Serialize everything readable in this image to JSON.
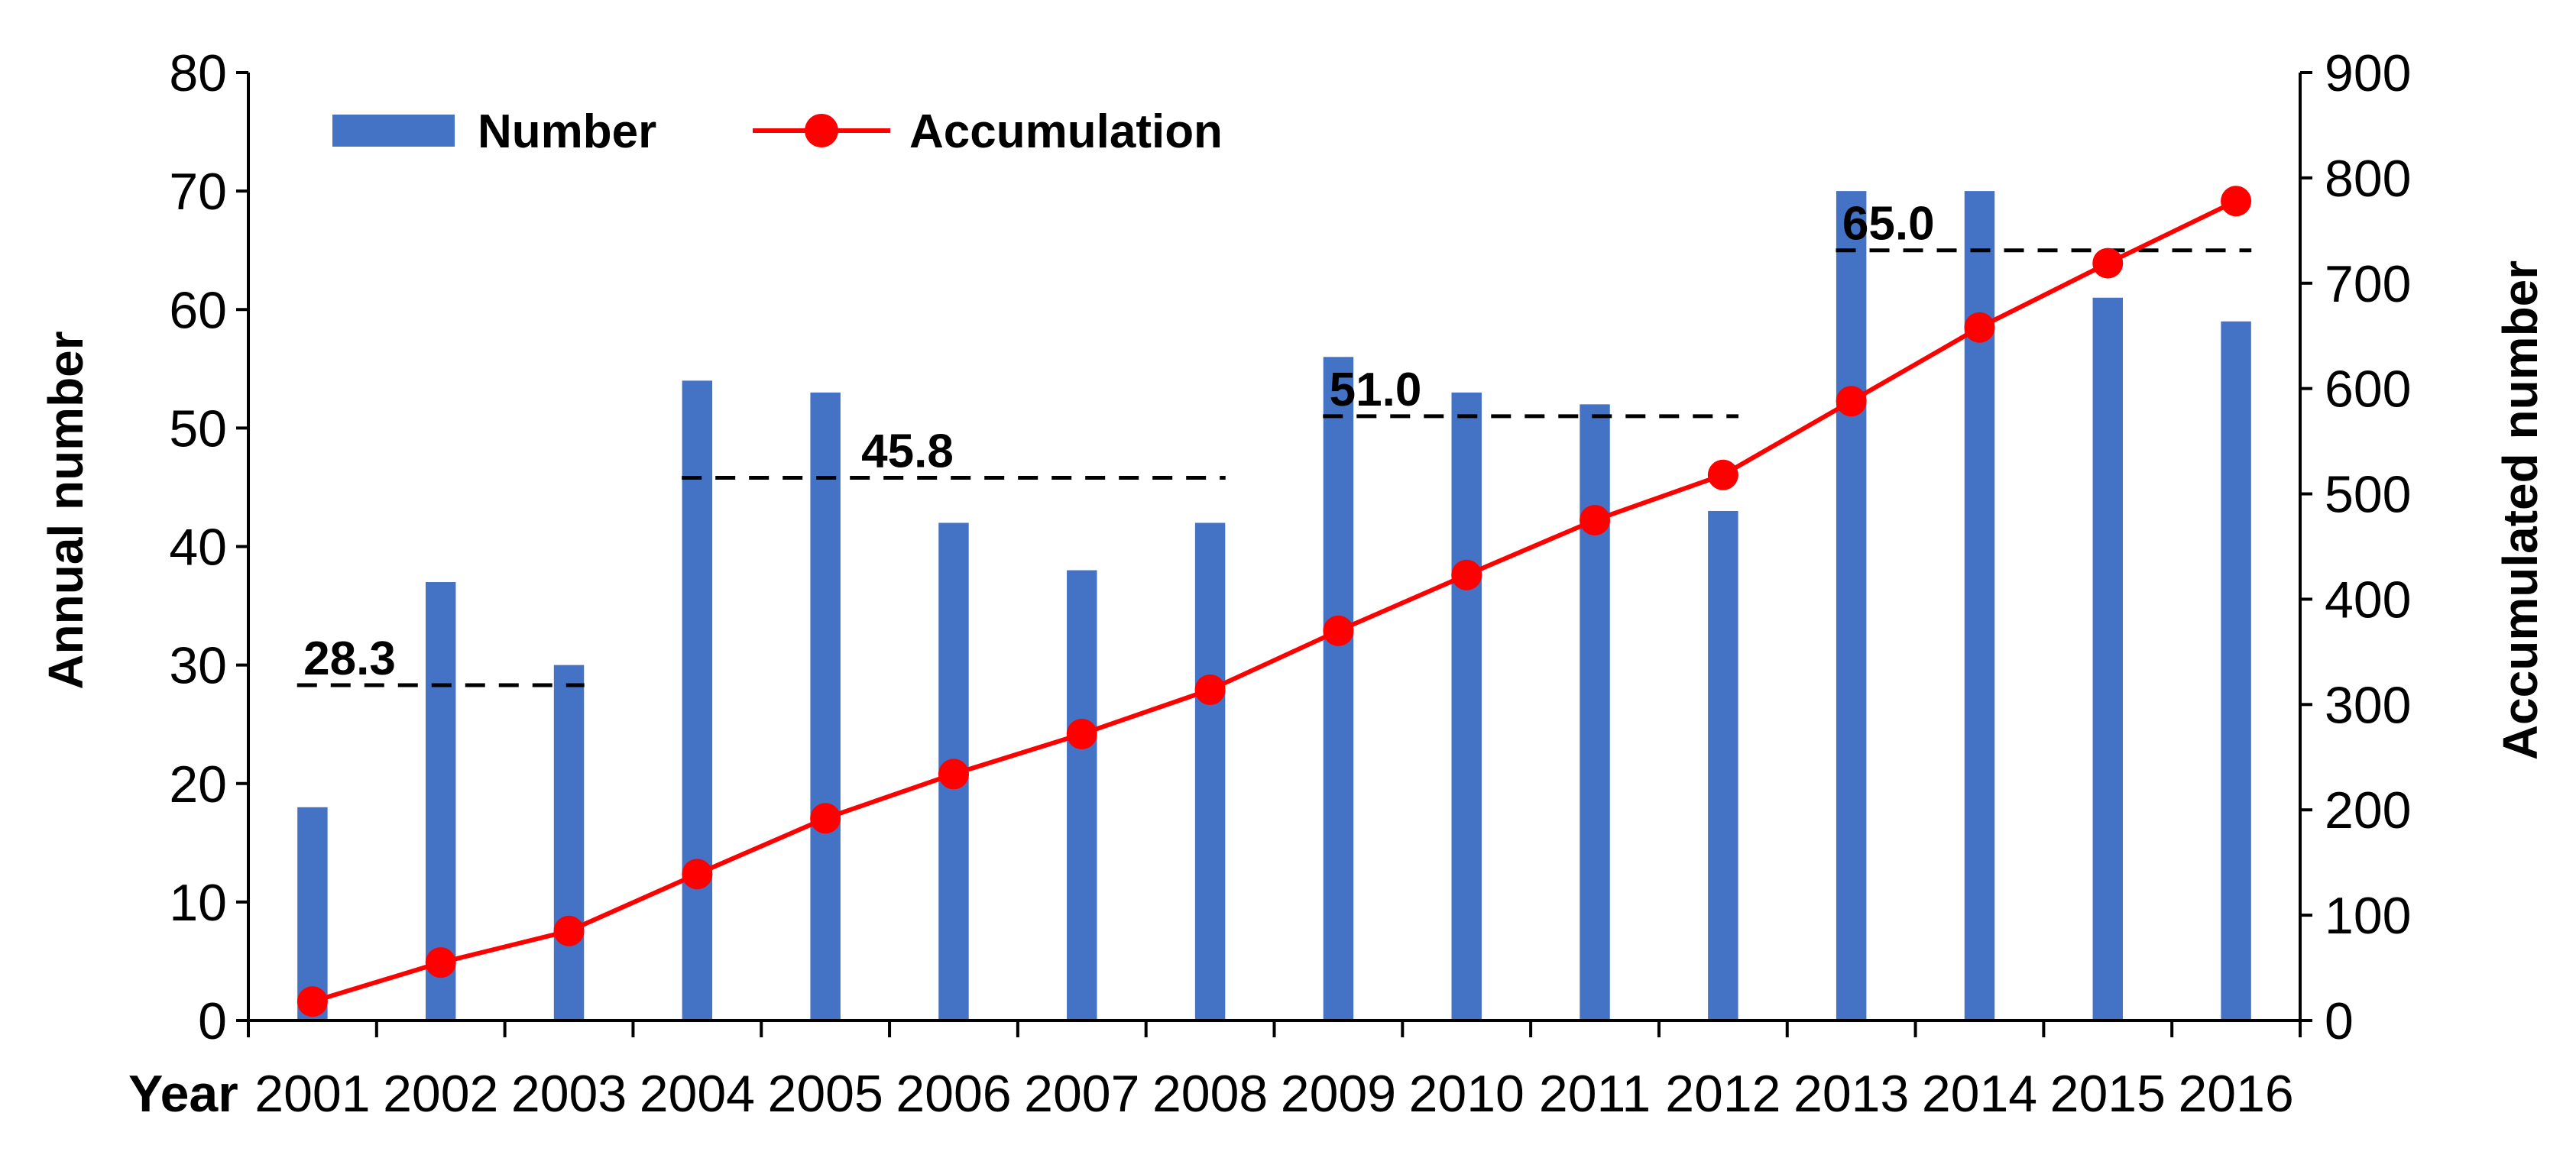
{
  "chart_data": {
    "type": "bar+line",
    "categories": [
      "2001",
      "2002",
      "2003",
      "2004",
      "2005",
      "2006",
      "2007",
      "2008",
      "2009",
      "2010",
      "2011",
      "2012",
      "2013",
      "2014",
      "2015",
      "2016"
    ],
    "x_axis_label": "Year",
    "series": [
      {
        "name": "Number",
        "type": "bar",
        "axis": "left",
        "color": "#4472C4",
        "values": [
          18,
          37,
          30,
          54,
          53,
          42,
          38,
          42,
          56,
          53,
          52,
          43,
          70,
          70,
          61,
          59
        ]
      },
      {
        "name": "Accumulation",
        "type": "line",
        "axis": "right",
        "color": "#FF0000",
        "values": [
          18,
          55,
          85,
          139,
          192,
          234,
          272,
          314,
          370,
          423,
          475,
          518,
          588,
          658,
          719,
          778
        ]
      }
    ],
    "left_axis": {
      "label": "Annual number",
      "ylim": [
        0,
        80
      ],
      "ticks": [
        0,
        10,
        20,
        30,
        40,
        50,
        60,
        70,
        80
      ]
    },
    "right_axis": {
      "label": "Accumulated number",
      "ylim": [
        0,
        900
      ],
      "ticks": [
        0,
        100,
        200,
        300,
        400,
        500,
        600,
        700,
        800,
        900
      ]
    },
    "period_averages": [
      {
        "label": "28.3",
        "value": 28.3,
        "from": "2001",
        "to": "2003"
      },
      {
        "label": "45.8",
        "value": 45.8,
        "from": "2004",
        "to": "2008"
      },
      {
        "label": "51.0",
        "value": 51.0,
        "from": "2009",
        "to": "2012"
      },
      {
        "label": "65.0",
        "value": 65.0,
        "from": "2013",
        "to": "2016"
      }
    ],
    "legend": {
      "position": "top-left",
      "items": [
        "Number",
        "Accumulation"
      ]
    }
  }
}
